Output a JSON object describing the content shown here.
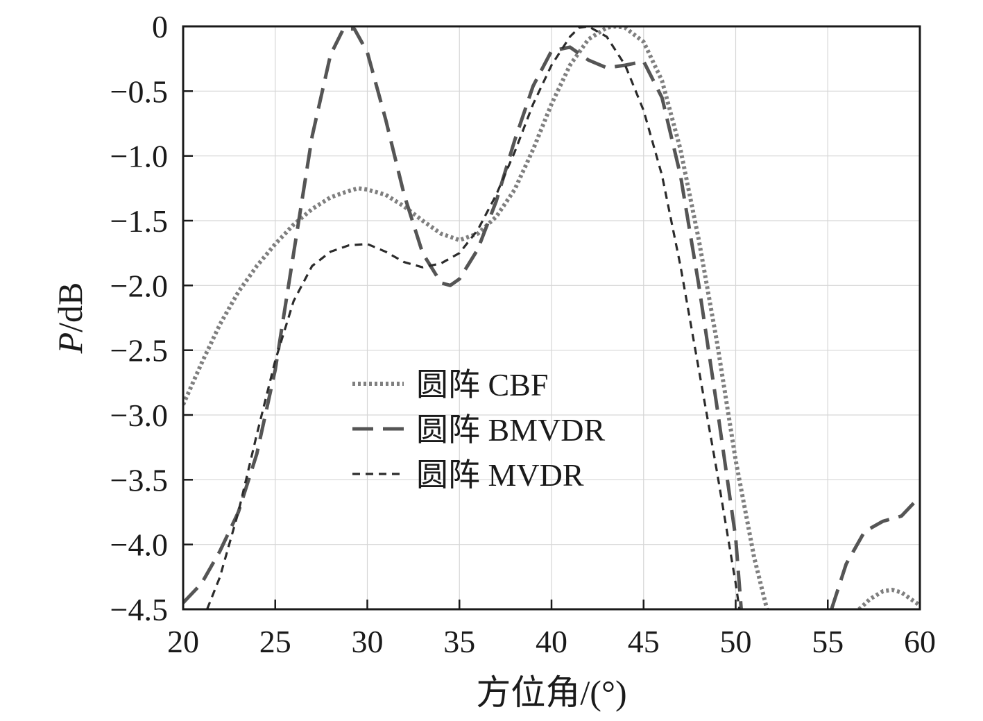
{
  "chart_data": {
    "type": "line",
    "title": "",
    "xlabel": "方位角/(°)",
    "ylabel_italic": "P",
    "ylabel_rest": "/dB",
    "xlim": [
      20,
      60
    ],
    "ylim": [
      -4.5,
      0
    ],
    "grid": true,
    "legend_position": "center-left",
    "x_ticks": [
      20,
      25,
      30,
      35,
      40,
      45,
      50,
      55,
      60
    ],
    "x_tick_labels": [
      "20",
      "25",
      "30",
      "35",
      "40",
      "45",
      "50",
      "55",
      "60"
    ],
    "y_ticks": [
      0,
      -0.5,
      -1.0,
      -1.5,
      -2.0,
      -2.5,
      -3.0,
      -3.5,
      -4.0,
      -4.5
    ],
    "y_tick_labels": [
      "0",
      "−0.5",
      "−1.0",
      "−1.5",
      "−2.0",
      "−2.5",
      "−3.0",
      "−3.5",
      "−4.0",
      "−4.5"
    ],
    "series": [
      {
        "name": "圆阵 CBF",
        "style": "dotted",
        "color": "#7f7f7f",
        "points": [
          [
            20,
            -2.92
          ],
          [
            21,
            -2.6
          ],
          [
            22,
            -2.3
          ],
          [
            23,
            -2.05
          ],
          [
            24,
            -1.85
          ],
          [
            25,
            -1.68
          ],
          [
            26,
            -1.53
          ],
          [
            27,
            -1.41
          ],
          [
            28,
            -1.32
          ],
          [
            29,
            -1.27
          ],
          [
            29.5,
            -1.25
          ],
          [
            30,
            -1.26
          ],
          [
            31,
            -1.3
          ],
          [
            32,
            -1.39
          ],
          [
            33,
            -1.5
          ],
          [
            34,
            -1.6
          ],
          [
            35,
            -1.65
          ],
          [
            36,
            -1.6
          ],
          [
            37,
            -1.47
          ],
          [
            38,
            -1.26
          ],
          [
            39,
            -0.95
          ],
          [
            40,
            -0.6
          ],
          [
            41,
            -0.3
          ],
          [
            42,
            -0.1
          ],
          [
            43,
            -0.01
          ],
          [
            43.5,
            0.0
          ],
          [
            44,
            -0.01
          ],
          [
            45,
            -0.12
          ],
          [
            46,
            -0.42
          ],
          [
            47,
            -0.95
          ],
          [
            48,
            -1.65
          ],
          [
            49,
            -2.45
          ],
          [
            50,
            -3.35
          ],
          [
            51,
            -4.1
          ],
          [
            51.7,
            -4.5
          ]
        ],
        "points_2": [
          [
            56.7,
            -4.5
          ],
          [
            57.3,
            -4.42
          ],
          [
            58,
            -4.36
          ],
          [
            58.5,
            -4.35
          ],
          [
            59,
            -4.37
          ],
          [
            59.5,
            -4.42
          ],
          [
            60,
            -4.47
          ]
        ]
      },
      {
        "name": "圆阵 BMVDR",
        "style": "dashed",
        "color": "#555555",
        "points": [
          [
            20,
            -4.45
          ],
          [
            21,
            -4.3
          ],
          [
            22,
            -4.05
          ],
          [
            23,
            -3.75
          ],
          [
            24,
            -3.3
          ],
          [
            25,
            -2.65
          ],
          [
            26,
            -1.75
          ],
          [
            27,
            -0.85
          ],
          [
            28,
            -0.22
          ],
          [
            28.7,
            -0.02
          ],
          [
            29.3,
            -0.02
          ],
          [
            30,
            -0.2
          ],
          [
            31,
            -0.72
          ],
          [
            32,
            -1.3
          ],
          [
            33,
            -1.75
          ],
          [
            34,
            -1.98
          ],
          [
            34.5,
            -2.0
          ],
          [
            35,
            -1.95
          ],
          [
            36,
            -1.72
          ],
          [
            37,
            -1.35
          ],
          [
            38,
            -0.88
          ],
          [
            39,
            -0.46
          ],
          [
            40,
            -0.19
          ],
          [
            41,
            -0.16
          ],
          [
            42,
            -0.26
          ],
          [
            43,
            -0.32
          ],
          [
            44,
            -0.3
          ],
          [
            45,
            -0.27
          ],
          [
            46,
            -0.55
          ],
          [
            47,
            -1.15
          ],
          [
            48,
            -2.0
          ],
          [
            49,
            -2.95
          ],
          [
            50,
            -3.95
          ],
          [
            50.3,
            -4.5
          ]
        ],
        "points_2": [
          [
            55.2,
            -4.5
          ],
          [
            56,
            -4.15
          ],
          [
            57,
            -3.9
          ],
          [
            58,
            -3.82
          ],
          [
            59,
            -3.78
          ],
          [
            60,
            -3.63
          ]
        ]
      },
      {
        "name": "圆阵 MVDR",
        "style": "short-dashed",
        "color": "#2b2b2b",
        "points": [
          [
            21.3,
            -4.5
          ],
          [
            22,
            -4.25
          ],
          [
            23,
            -3.75
          ],
          [
            24,
            -3.15
          ],
          [
            25,
            -2.58
          ],
          [
            26,
            -2.12
          ],
          [
            27,
            -1.85
          ],
          [
            28,
            -1.74
          ],
          [
            29,
            -1.69
          ],
          [
            30,
            -1.68
          ],
          [
            31,
            -1.74
          ],
          [
            32,
            -1.82
          ],
          [
            33,
            -1.86
          ],
          [
            34,
            -1.83
          ],
          [
            35,
            -1.75
          ],
          [
            36,
            -1.57
          ],
          [
            37,
            -1.3
          ],
          [
            38,
            -0.97
          ],
          [
            39,
            -0.6
          ],
          [
            40,
            -0.3
          ],
          [
            41,
            -0.08
          ],
          [
            41.5,
            -0.01
          ],
          [
            42,
            0.0
          ],
          [
            43,
            -0.08
          ],
          [
            44,
            -0.3
          ],
          [
            45,
            -0.65
          ],
          [
            46,
            -1.15
          ],
          [
            47,
            -1.85
          ],
          [
            48,
            -2.65
          ],
          [
            49,
            -3.45
          ],
          [
            50,
            -4.3
          ],
          [
            50.2,
            -4.5
          ]
        ]
      }
    ]
  }
}
